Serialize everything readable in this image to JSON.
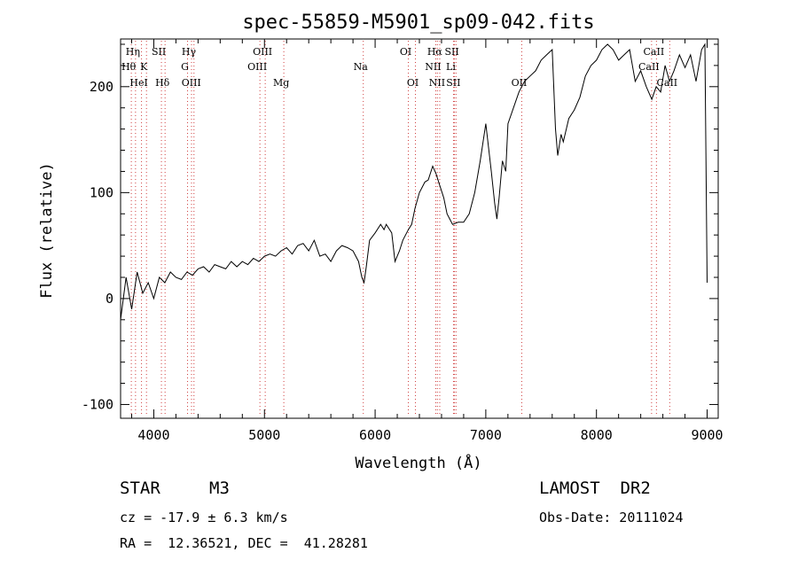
{
  "chart_data": {
    "type": "line",
    "title": "spec-55859-M5901_sp09-042.fits",
    "xlabel": "Wavelength (Å)",
    "ylabel": "Flux (relative)",
    "xlim": [
      3700,
      9100
    ],
    "ylim": [
      -113,
      245
    ],
    "xticks": [
      "4000",
      "5000",
      "6000",
      "7000",
      "8000",
      "9000"
    ],
    "yticks": [
      "-100",
      "0",
      "100",
      "200"
    ],
    "grid": false,
    "series": [
      {
        "x": [
          3700,
          3750,
          3800,
          3850,
          3900,
          3950,
          4000,
          4050,
          4100,
          4150,
          4200,
          4250,
          4300,
          4350,
          4400,
          4450,
          4500,
          4550,
          4600,
          4650,
          4700,
          4750,
          4800,
          4850,
          4900,
          4950,
          5000,
          5050,
          5100,
          5150,
          5200,
          5250,
          5300,
          5350,
          5400,
          5450,
          5500,
          5550,
          5600,
          5650,
          5700,
          5750,
          5800,
          5850,
          5880,
          5900,
          5920,
          5950,
          6000,
          6050,
          6080,
          6100,
          6150,
          6180,
          6200,
          6220,
          6250,
          6300,
          6330,
          6360,
          6400,
          6450,
          6480,
          6520,
          6550,
          6580,
          6620,
          6650,
          6700,
          6750,
          6800,
          6850,
          6900,
          6950,
          7000,
          7050,
          7080,
          7100,
          7120,
          7150,
          7180,
          7200,
          7250,
          7300,
          7350,
          7400,
          7450,
          7500,
          7550,
          7600,
          7630,
          7650,
          7680,
          7700,
          7750,
          7800,
          7850,
          7900,
          7950,
          8000,
          8050,
          8100,
          8150,
          8200,
          8250,
          8300,
          8350,
          8400,
          8450,
          8500,
          8540,
          8580,
          8620,
          8660,
          8700,
          8750,
          8800,
          8850,
          8900,
          8950,
          8980,
          9000
        ],
        "y": [
          -20,
          20,
          -10,
          25,
          5,
          15,
          0,
          20,
          15,
          25,
          20,
          18,
          25,
          22,
          28,
          30,
          25,
          32,
          30,
          28,
          35,
          30,
          35,
          32,
          38,
          35,
          40,
          42,
          40,
          45,
          48,
          42,
          50,
          52,
          45,
          55,
          40,
          42,
          35,
          45,
          50,
          48,
          45,
          35,
          20,
          15,
          30,
          55,
          62,
          70,
          65,
          70,
          62,
          35,
          40,
          45,
          55,
          65,
          70,
          85,
          100,
          110,
          112,
          125,
          118,
          108,
          95,
          80,
          70,
          72,
          72,
          80,
          100,
          130,
          165,
          120,
          90,
          75,
          95,
          130,
          120,
          165,
          180,
          195,
          205,
          210,
          215,
          225,
          230,
          235,
          160,
          135,
          155,
          148,
          170,
          178,
          190,
          210,
          220,
          225,
          235,
          240,
          235,
          225,
          230,
          235,
          205,
          215,
          200,
          188,
          200,
          195,
          220,
          205,
          215,
          230,
          218,
          230,
          205,
          235,
          240,
          15
        ]
      }
    ],
    "spectral_lines": [
      {
        "label": "Hη",
        "wavelength": 3835,
        "row": 1
      },
      {
        "label": "Hθ",
        "wavelength": 3797,
        "row": 2
      },
      {
        "label": "K",
        "wavelength": 3934,
        "row": 2
      },
      {
        "label": "HeI",
        "wavelength": 3889,
        "row": 3
      },
      {
        "label": "SII",
        "wavelength": 4069,
        "row": 1
      },
      {
        "label": "Hδ",
        "wavelength": 4102,
        "row": 3
      },
      {
        "label": "Hγ",
        "wavelength": 4341,
        "row": 1
      },
      {
        "label": "G",
        "wavelength": 4305,
        "row": 2
      },
      {
        "label": "OIII",
        "wavelength": 4363,
        "row": 3
      },
      {
        "label": "OIII",
        "wavelength": 5007,
        "row": 1
      },
      {
        "label": "OIII",
        "wavelength": 4959,
        "row": 2
      },
      {
        "label": "Mg",
        "wavelength": 5175,
        "row": 3
      },
      {
        "label": "Na",
        "wavelength": 5893,
        "row": 2
      },
      {
        "label": "OI",
        "wavelength": 6300,
        "row": 1
      },
      {
        "label": "OI",
        "wavelength": 6364,
        "row": 3
      },
      {
        "label": "Hα",
        "wavelength": 6563,
        "row": 1
      },
      {
        "label": "SII",
        "wavelength": 6717,
        "row": 1
      },
      {
        "label": "NII",
        "wavelength": 6548,
        "row": 2
      },
      {
        "label": "Li",
        "wavelength": 6708,
        "row": 2
      },
      {
        "label": "NII",
        "wavelength": 6584,
        "row": 3
      },
      {
        "label": "SII",
        "wavelength": 6731,
        "row": 3
      },
      {
        "label": "OII",
        "wavelength": 7325,
        "row": 3
      },
      {
        "label": "CaII",
        "wavelength": 8542,
        "row": 1
      },
      {
        "label": "CaII",
        "wavelength": 8498,
        "row": 2
      },
      {
        "label": "CaII",
        "wavelength": 8662,
        "row": 3
      }
    ]
  },
  "info": {
    "class": "STAR",
    "subclass": "M3",
    "survey": "LAMOST  DR2",
    "redshift": "cz = -17.9 ± 6.3 km/s",
    "obsdate": "Obs-Date: 20111024",
    "coords": "RA =  12.36521, DEC =  41.28281"
  },
  "colors": {
    "spectrum": "#000000",
    "line_markers": "#d04040"
  }
}
